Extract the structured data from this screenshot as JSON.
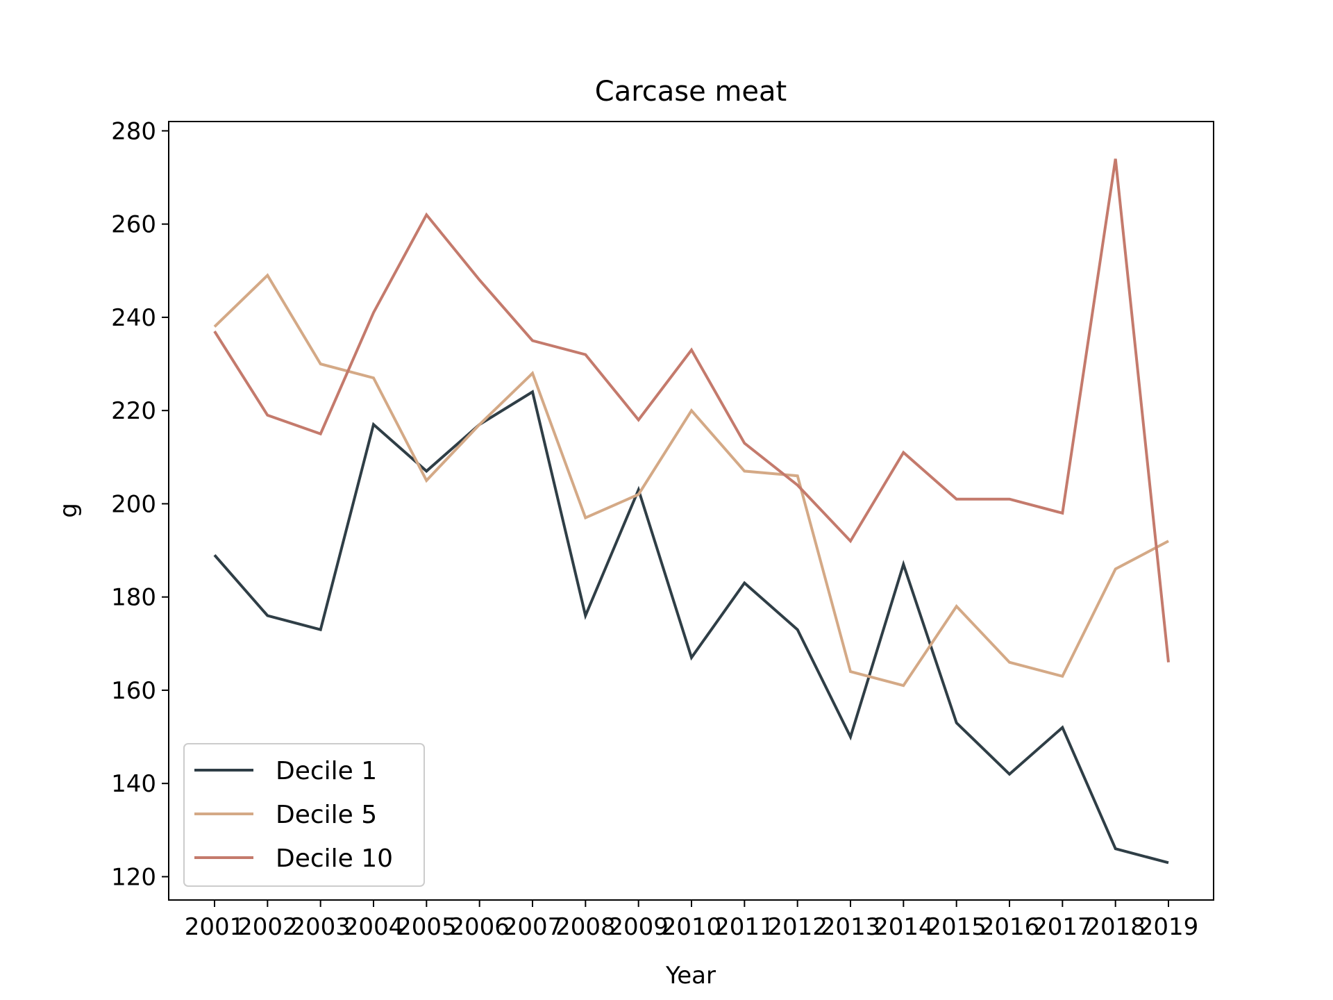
{
  "chart_data": {
    "type": "line",
    "title": "Carcase meat",
    "xlabel": "Year",
    "ylabel": "g",
    "x": [
      "2001",
      "2002",
      "2003",
      "2004",
      "2005",
      "2006",
      "2007",
      "2008",
      "2009",
      "2010",
      "2011",
      "2012",
      "2013",
      "2014",
      "2015",
      "2016",
      "2017",
      "2018",
      "2019"
    ],
    "ylim": [
      115,
      282
    ],
    "yticks": [
      120,
      140,
      160,
      180,
      200,
      220,
      240,
      260,
      280
    ],
    "grid": false,
    "legend_position": "lower-left",
    "series": [
      {
        "name": "Decile 1",
        "color": "#2f3e46",
        "values": [
          189,
          176,
          173,
          217,
          207,
          217,
          224,
          176,
          203,
          167,
          183,
          173,
          150,
          187,
          153,
          142,
          152,
          126,
          123
        ]
      },
      {
        "name": "Decile 5",
        "color": "#d4a986",
        "values": [
          238,
          249,
          230,
          227,
          205,
          217,
          228,
          197,
          202,
          220,
          207,
          206,
          164,
          161,
          178,
          166,
          163,
          186,
          192
        ]
      },
      {
        "name": "Decile 10",
        "color": "#c47a6c",
        "values": [
          237,
          219,
          215,
          241,
          262,
          248,
          235,
          232,
          218,
          233,
          213,
          204,
          192,
          211,
          201,
          201,
          198,
          274,
          166
        ]
      }
    ]
  }
}
